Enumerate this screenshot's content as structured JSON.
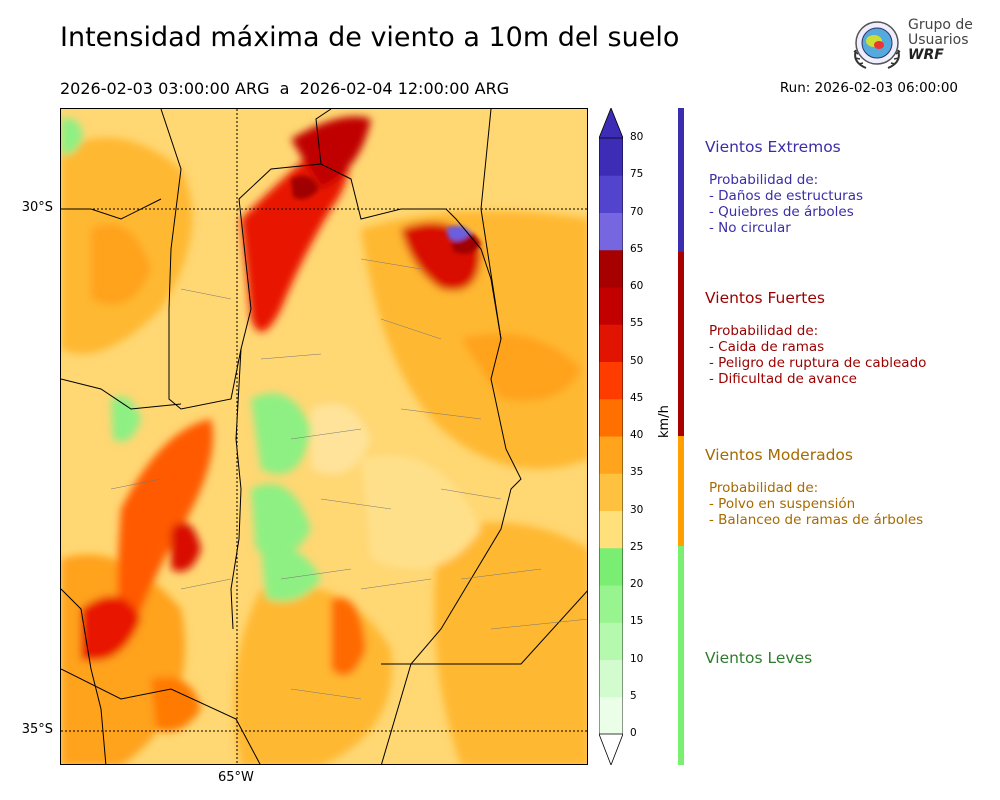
{
  "title": "Intensidad máxima de viento a 10m del suelo",
  "subtitle": "2026-02-03 03:00:00 ARG  a  2026-02-04 12:00:00 ARG",
  "run": "Run: 2026-02-03 06:00:00",
  "logo": {
    "line1": "Grupo de",
    "line2": "Usuarios",
    "line3": "WRF"
  },
  "map_axes": {
    "lat_labels": [
      "30°S",
      "35°S"
    ],
    "lon_labels": [
      "65°W"
    ]
  },
  "colorbar": {
    "unit": "km/h",
    "ticks": [
      "0",
      "5",
      "10",
      "15",
      "20",
      "25",
      "30",
      "35",
      "40",
      "45",
      "50",
      "55",
      "60",
      "65",
      "70",
      "75",
      "80"
    ],
    "colors": [
      "#eafee8",
      "#d2fcce",
      "#b4f9ad",
      "#98f48f",
      "#7aee73",
      "#ffe07a",
      "#ffc240",
      "#ffa41c",
      "#ff7000",
      "#ff3c00",
      "#e01400",
      "#c20000",
      "#a60000",
      "#7666e0",
      "#5244cc",
      "#3c2cb6"
    ]
  },
  "categories": [
    {
      "name": "Vientos Extremos",
      "color": "#3a2da8",
      "lines": [
        "Probabilidad de:",
        "- Daños de estructuras",
        "- Quiebres de árboles",
        "- No circular"
      ]
    },
    {
      "name": "Vientos Fuertes",
      "color": "#9a0000",
      "lines": [
        "Probabilidad de:",
        "- Caida de ramas",
        "- Peligro de ruptura de cableado",
        "- Dificultad de avance"
      ]
    },
    {
      "name": "Vientos Moderados",
      "color": "#a66a00",
      "lines": [
        "Probabilidad de:",
        "- Polvo en suspensión",
        "- Balanceo de ramas de árboles"
      ]
    },
    {
      "name": "Vientos Leves",
      "color": "#2e7d2e",
      "lines": []
    }
  ],
  "category_bar_colors": [
    "#3a2db0",
    "#a80000",
    "#ffa000",
    "#7aef70"
  ]
}
